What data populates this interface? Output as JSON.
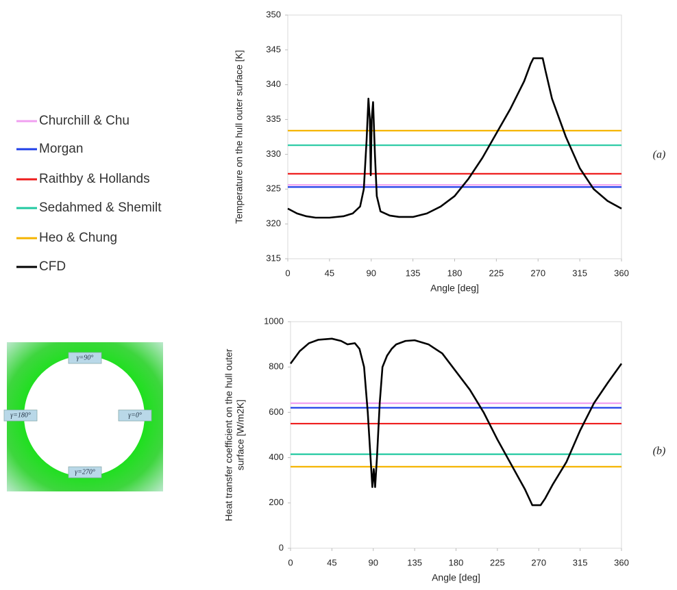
{
  "chart_data": [
    {
      "type": "line",
      "panel_label": "(a)",
      "x_label": "Angle [deg]",
      "y_label": "Temperature on the hull outer surface [K]",
      "xlim": [
        0,
        360
      ],
      "xticks": [
        0,
        45,
        90,
        135,
        180,
        225,
        270,
        315,
        360
      ],
      "ylim": [
        315,
        350
      ],
      "yticks": [
        315,
        320,
        325,
        330,
        335,
        340,
        345,
        350
      ],
      "series": [
        {
          "name": "Churchill & Chu",
          "color": "#f0a0f0",
          "x": [
            0,
            360
          ],
          "values": [
            325.6,
            325.6
          ]
        },
        {
          "name": "Morgan",
          "color": "#1f3fe8",
          "x": [
            0,
            360
          ],
          "values": [
            325.3,
            325.3
          ]
        },
        {
          "name": "Raithby & Hollands",
          "color": "#ee1c1c",
          "x": [
            0,
            360
          ],
          "values": [
            327.2,
            327.2
          ]
        },
        {
          "name": "Sedahmed & Shemilt",
          "color": "#20c8a0",
          "x": [
            0,
            360
          ],
          "values": [
            331.3,
            331.3
          ]
        },
        {
          "name": "Heo & Chung",
          "color": "#f5b400",
          "x": [
            0,
            360
          ],
          "values": [
            333.4,
            333.4
          ]
        },
        {
          "name": "CFD",
          "color": "#000000",
          "x": [
            0,
            10,
            20,
            30,
            45,
            60,
            70,
            78,
            82,
            85,
            87,
            88.5,
            89.5,
            90.5,
            92,
            94,
            96,
            100,
            110,
            120,
            135,
            150,
            165,
            180,
            195,
            210,
            225,
            240,
            255,
            262,
            265,
            275,
            278,
            285,
            300,
            315,
            330,
            345,
            360
          ],
          "values": [
            322.2,
            321.5,
            321.1,
            320.9,
            320.9,
            321.1,
            321.5,
            322.5,
            325,
            332,
            338,
            335,
            327,
            335,
            337.5,
            330,
            324,
            321.8,
            321.2,
            321,
            321,
            321.5,
            322.5,
            324,
            326.5,
            329.5,
            333,
            336.5,
            340.5,
            343,
            343.8,
            343.8,
            342,
            338,
            332.5,
            328,
            325,
            323.3,
            322.2
          ]
        }
      ]
    },
    {
      "type": "line",
      "panel_label": "(b)",
      "x_label": "Angle [deg]",
      "y_label": "Heat transfer coefficient on the hull outer surface [W/m2K]",
      "xlim": [
        0,
        360
      ],
      "xticks": [
        0,
        45,
        90,
        135,
        180,
        225,
        270,
        315,
        360
      ],
      "ylim": [
        0,
        1000
      ],
      "yticks": [
        0,
        200,
        400,
        600,
        800,
        1000
      ],
      "series": [
        {
          "color": "#f0a0f0",
          "x": [
            0,
            360
          ],
          "values": [
            640,
            640
          ]
        },
        {
          "color": "#1f3fe8",
          "x": [
            0,
            360
          ],
          "values": [
            620,
            620
          ]
        },
        {
          "color": "#ee1c1c",
          "x": [
            0,
            360
          ],
          "values": [
            550,
            550
          ]
        },
        {
          "color": "#20c8a0",
          "x": [
            0,
            360
          ],
          "values": [
            415,
            415
          ]
        },
        {
          "color": "#f5b400",
          "x": [
            0,
            360
          ],
          "values": [
            360,
            360
          ]
        },
        {
          "color": "#000000",
          "x": [
            0,
            10,
            20,
            30,
            45,
            55,
            62,
            70,
            75,
            80,
            84,
            87,
            89,
            90.5,
            92,
            94,
            97,
            100,
            105,
            110,
            115,
            125,
            135,
            150,
            165,
            180,
            195,
            210,
            225,
            240,
            255,
            263,
            272,
            277,
            285,
            300,
            315,
            330,
            345,
            360
          ],
          "values": [
            815,
            870,
            905,
            920,
            925,
            915,
            900,
            905,
            880,
            800,
            600,
            400,
            270,
            350,
            270,
            400,
            640,
            800,
            850,
            880,
            900,
            915,
            918,
            900,
            860,
            780,
            700,
            600,
            480,
            370,
            260,
            190,
            190,
            220,
            280,
            380,
            520,
            640,
            730,
            815
          ]
        }
      ]
    }
  ],
  "diagram": {
    "labels": [
      "γ=90°",
      "γ=180°",
      "γ=0°",
      "γ=270°"
    ]
  }
}
